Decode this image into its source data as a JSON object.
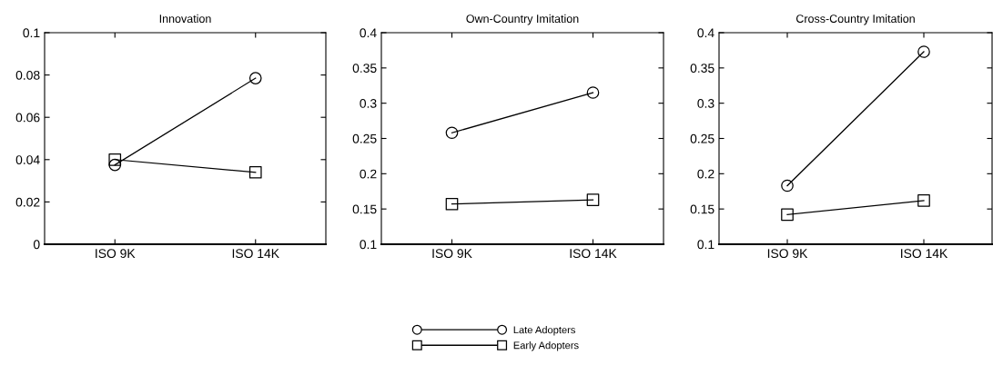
{
  "chart_data": [
    {
      "type": "line",
      "title": "Innovation",
      "categories": [
        "ISO 9K",
        "ISO 14K"
      ],
      "ylim": [
        0,
        0.1
      ],
      "yticks": [
        0,
        0.02,
        0.04,
        0.06,
        0.08,
        {
          "value": 0.1,
          "label": "0.1"
        }
      ],
      "line_style": "solid",
      "grid": false,
      "legend": "bottom",
      "series": [
        {
          "name": "Late Adopters",
          "color": "#000000",
          "marker": "circle",
          "values": [
            0.0375,
            0.0785
          ]
        },
        {
          "name": "Early Adopters",
          "color": "#000000",
          "marker": "square",
          "values": [
            0.04,
            0.034
          ]
        }
      ]
    },
    {
      "type": "line",
      "title": "Own-Country Imitation",
      "categories": [
        "ISO 9K",
        "ISO 14K"
      ],
      "ylim": [
        0.1,
        0.4
      ],
      "yticks": [
        0.1,
        0.15,
        0.2,
        0.25,
        0.3,
        0.35,
        0.4
      ],
      "line_style": "solid",
      "grid": false,
      "series": [
        {
          "color": "#000000",
          "marker": "circle",
          "values": [
            0.258,
            0.315
          ]
        },
        {
          "color": "#000000",
          "marker": "square",
          "values": [
            0.157,
            0.163
          ]
        }
      ]
    },
    {
      "type": "line",
      "title": "Cross-Country Imitation",
      "categories": [
        "ISO 9K",
        "ISO 14K"
      ],
      "ylim": [
        0.1,
        0.4
      ],
      "yticks": [
        0.1,
        0.15,
        0.2,
        0.25,
        0.3,
        0.35,
        0.4
      ],
      "line_style": "solid",
      "grid": false,
      "series": [
        {
          "color": "#000000",
          "marker": "circle",
          "values": [
            0.183,
            0.373
          ]
        },
        {
          "color": "#000000",
          "marker": "square",
          "values": [
            0.142,
            0.162
          ]
        }
      ]
    }
  ]
}
